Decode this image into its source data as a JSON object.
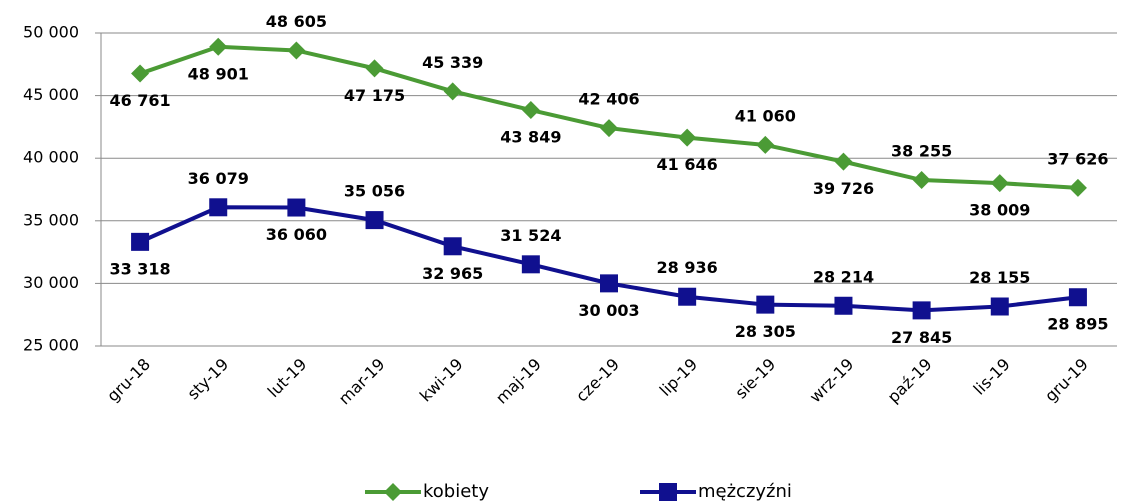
{
  "chart_data": {
    "type": "line",
    "categories": [
      "gru-18",
      "sty-19",
      "lut-19",
      "mar-19",
      "kwi-19",
      "maj-19",
      "cze-19",
      "lip-19",
      "sie-19",
      "wrz-19",
      "paź-19",
      "lis-19",
      "gru-19"
    ],
    "series": [
      {
        "name": "kobiety",
        "color": "#4b9b35",
        "marker": "diamond",
        "values": [
          46761,
          48901,
          48605,
          47175,
          45339,
          43849,
          42406,
          41646,
          41060,
          39726,
          38255,
          38009,
          37626
        ],
        "value_labels": [
          "46 761",
          "48 901",
          "48 605",
          "47 175",
          "45 339",
          "43 849",
          "42 406",
          "41 646",
          "41 060",
          "39 726",
          "38 255",
          "38 009",
          "37 626"
        ]
      },
      {
        "name": "mężczyźni",
        "color": "#10108f",
        "marker": "square",
        "values": [
          33318,
          36079,
          36060,
          35056,
          32965,
          31524,
          30003,
          28936,
          28305,
          28214,
          27845,
          28155,
          28895
        ],
        "value_labels": [
          "33 318",
          "36 079",
          "36 060",
          "35 056",
          "32 965",
          "31 524",
          "30 003",
          "28 936",
          "28 305",
          "28 214",
          "27 845",
          "28 155",
          "28 895"
        ]
      }
    ],
    "ylim": [
      25000,
      50000
    ],
    "yticks": [
      {
        "value": 25000,
        "label": "25 000"
      },
      {
        "value": 30000,
        "label": "30 000"
      },
      {
        "value": 35000,
        "label": "35 000"
      },
      {
        "value": 40000,
        "label": "40 000"
      },
      {
        "value": 45000,
        "label": "45 000"
      },
      {
        "value": 50000,
        "label": "50 000"
      }
    ],
    "grid": true,
    "legend": "bottom"
  }
}
